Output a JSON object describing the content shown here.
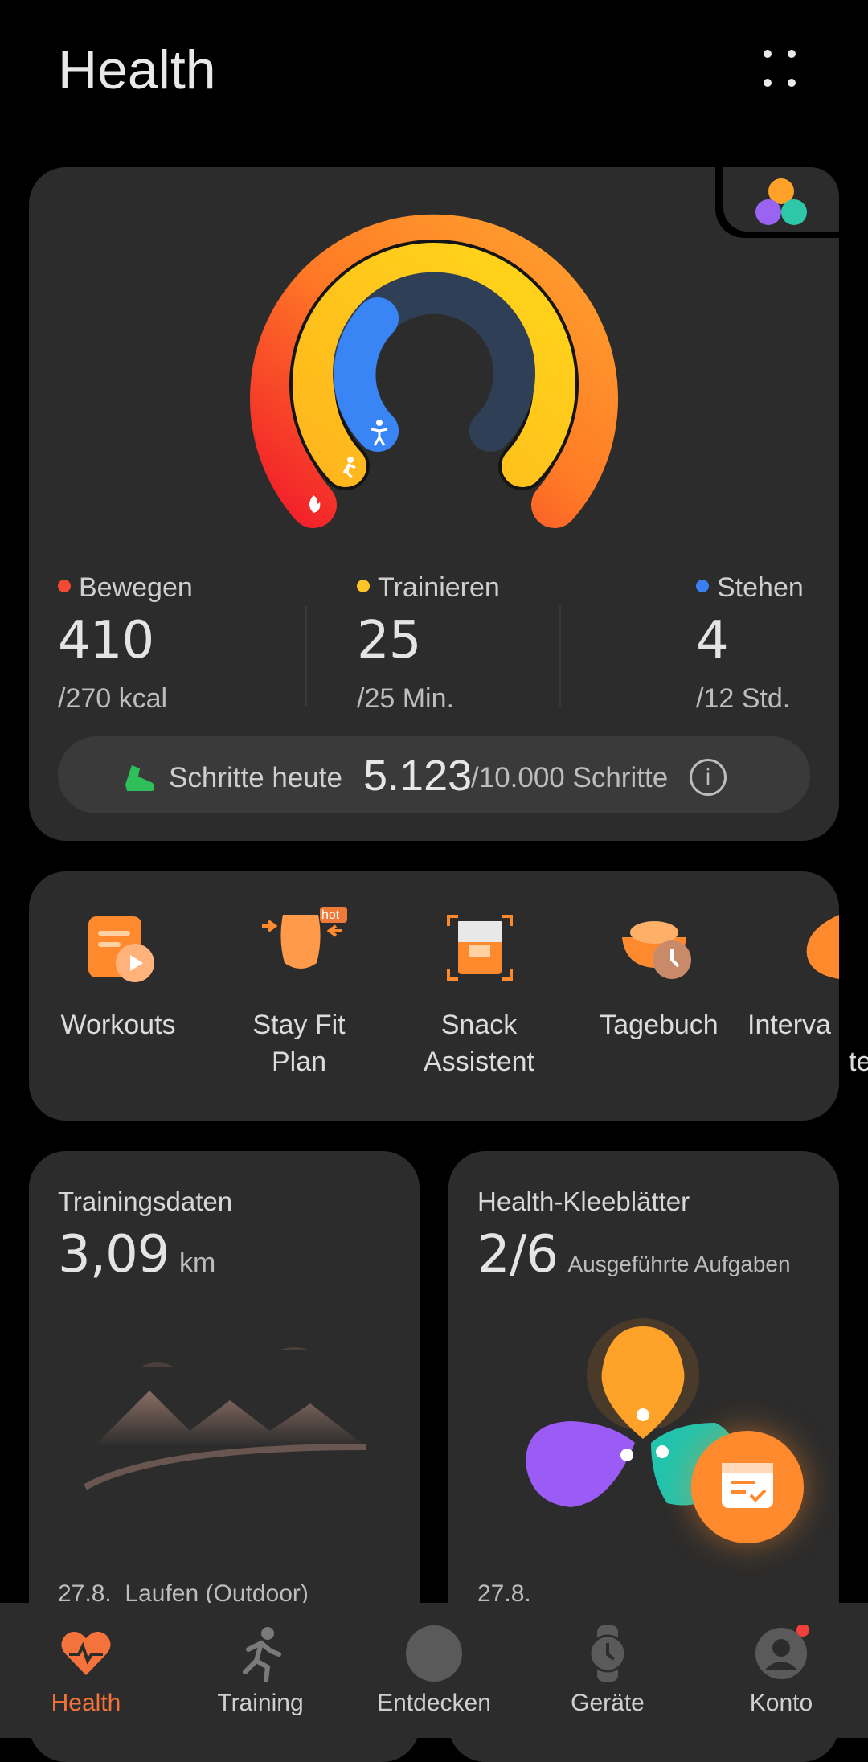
{
  "header": {
    "title": "Health"
  },
  "rings": {
    "colors": {
      "move": "#f24a2b",
      "exercise": "#ffc21a",
      "stand": "#3a85f5"
    },
    "stats": [
      {
        "label": "Bewegen",
        "value": "410",
        "goal": "/270 kcal",
        "color": "#f04a32"
      },
      {
        "label": "Trainieren",
        "value": "25",
        "goal": "/25 Min.",
        "color": "#ffc32a"
      },
      {
        "label": "Stehen",
        "value": "4",
        "goal": "/12 Std.",
        "color": "#3a7ff2"
      }
    ],
    "move_progress": 1.0,
    "exercise_progress": 1.0,
    "stand_progress": 0.33
  },
  "steps": {
    "label": "Schritte heute",
    "value": "5.123",
    "goal": "/10.000 Schritte"
  },
  "shortcuts": [
    {
      "label1": "Workouts",
      "label2": "",
      "icon": "workouts-icon"
    },
    {
      "label1": "Stay Fit",
      "label2": "Plan",
      "icon": "stay-fit-icon",
      "badge": "hot"
    },
    {
      "label1": "Snack",
      "label2": "Assistent",
      "icon": "snack-icon"
    },
    {
      "label1": "Tagebuch",
      "label2": "",
      "icon": "diary-icon"
    },
    {
      "label1": "Interva",
      "label2": "te",
      "icon": "interval-icon"
    }
  ],
  "tiles": {
    "training": {
      "title": "Trainingsdaten",
      "value": "3,09",
      "unit": "km",
      "date": "27.8.",
      "activity": "Laufen (Outdoor)"
    },
    "clover": {
      "title": "Health-Kleeblätter",
      "value": "2/6",
      "unit": "Ausgeführte Aufgaben",
      "date": "27.8."
    }
  },
  "nav": [
    {
      "label": "Health",
      "active": true
    },
    {
      "label": "Training",
      "active": false
    },
    {
      "label": "Entdecken",
      "active": false
    },
    {
      "label": "Geräte",
      "active": false
    },
    {
      "label": "Konto",
      "active": false
    }
  ],
  "accent": "#f4733c"
}
